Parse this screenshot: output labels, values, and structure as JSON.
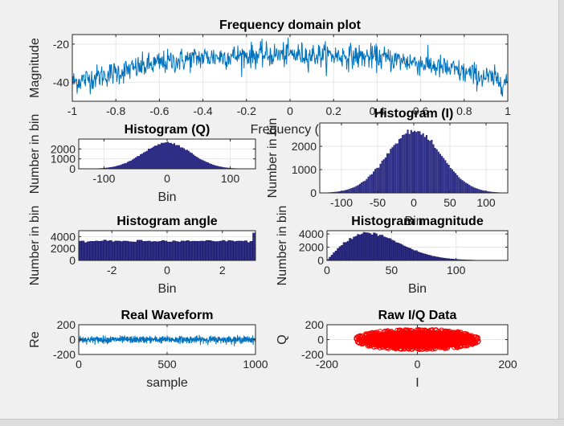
{
  "figure": {
    "background": "#f0f0f0"
  },
  "colors": {
    "line": "#0072bd",
    "bar": "#2e2e86",
    "iq": "#ff0000"
  },
  "chart_data": [
    {
      "id": "freq",
      "type": "line",
      "title": "Frequency domain plot",
      "xlabel": "Frequency (M",
      "ylabel": "Magnitude",
      "xlim": [
        -1,
        1
      ],
      "ylim": [
        -50,
        -15
      ],
      "xticks": [
        "-1",
        "-0.8",
        "-0.6",
        "-0.4",
        "-0.2",
        "0",
        "0.2",
        "0.4",
        "0.6",
        "0.8",
        "1"
      ],
      "yticks": [
        "-40",
        "-20"
      ],
      "grid": true,
      "series": [
        {
          "x": [
            -1,
            -0.8,
            -0.6,
            -0.4,
            -0.2,
            0,
            0.2,
            0.4,
            0.6,
            0.8,
            1
          ],
          "y": [
            -40,
            -35,
            -30,
            -27,
            -26,
            -25.5,
            -26,
            -27,
            -30,
            -35,
            -40
          ]
        }
      ]
    },
    {
      "id": "histQ",
      "type": "bar",
      "title": "Histogram (Q)",
      "xlabel": "Bin",
      "ylabel": "Number in bin",
      "xlim": [
        -140,
        140
      ],
      "ylim": [
        0,
        3000
      ],
      "xticks": [
        "-100",
        "0",
        "100"
      ],
      "yticks": [
        "0",
        "1000",
        "2000"
      ],
      "grid": true,
      "series": [
        {
          "peak": 2650,
          "center": 0,
          "sigma": 38
        }
      ]
    },
    {
      "id": "histI",
      "type": "bar",
      "title": "Histogram (I)",
      "xlabel": "Bin",
      "ylabel": "Number in bin",
      "xlim": [
        -130,
        130
      ],
      "ylim": [
        0,
        3000
      ],
      "xticks": [
        "-100",
        "-50",
        "0",
        "50",
        "100"
      ],
      "yticks": [
        "0",
        "1000",
        "2000"
      ],
      "grid": true,
      "series": [
        {
          "peak": 2650,
          "center": 0,
          "sigma": 38
        }
      ]
    },
    {
      "id": "histAngle",
      "type": "bar",
      "title": "Histogram angle",
      "xlabel": "Bin",
      "ylabel": "Number in bin",
      "xlim": [
        -3.2,
        3.2
      ],
      "ylim": [
        0,
        5000
      ],
      "xticks": [
        "-2",
        "0",
        "2"
      ],
      "yticks": [
        "0",
        "2000",
        "4000"
      ],
      "grid": true,
      "series": [
        {
          "level": 3200,
          "last": 4600
        }
      ]
    },
    {
      "id": "histMag",
      "type": "bar",
      "title": "Histogram magnitude",
      "xlabel": "Bin",
      "ylabel": "Number in bin",
      "xlim": [
        0,
        140
      ],
      "ylim": [
        0,
        4500
      ],
      "xticks": [
        "0",
        "50",
        "100"
      ],
      "yticks": [
        "0",
        "2000",
        "4000"
      ],
      "grid": true,
      "series": [
        {
          "peak": 4100,
          "mode": 32,
          "sigma": 32
        }
      ]
    },
    {
      "id": "real",
      "type": "line",
      "title": "Real Waveform",
      "xlabel": "sample",
      "ylabel": "Re",
      "xlim": [
        0,
        1000
      ],
      "ylim": [
        -200,
        200
      ],
      "xticks": [
        "0",
        "500",
        "1000"
      ],
      "yticks": [
        "-200",
        "0",
        "200"
      ],
      "grid": true,
      "series": [
        {
          "amplitude": 40
        }
      ]
    },
    {
      "id": "iq",
      "type": "scatter",
      "title": "Raw I/Q Data",
      "xlabel": "I",
      "ylabel": "Q",
      "xlim": [
        -200,
        200
      ],
      "ylim": [
        -200,
        200
      ],
      "xticks": [
        "-200",
        "0",
        "200"
      ],
      "yticks": [
        "-200",
        "0",
        "200"
      ],
      "grid": true,
      "series": [
        {
          "spread": 130
        }
      ]
    }
  ]
}
